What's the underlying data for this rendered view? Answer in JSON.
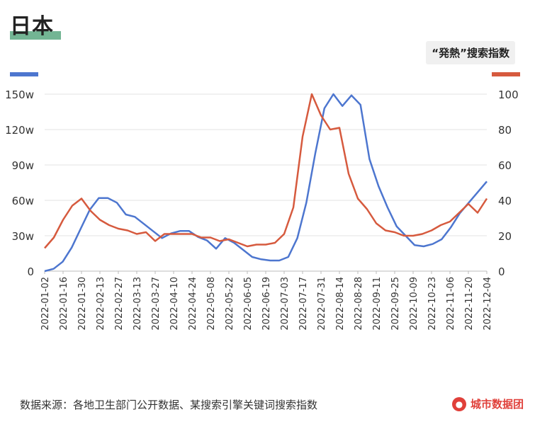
{
  "title": "日本",
  "badge": "“発熱”搜索指数",
  "source": "数据来源：各地卫生部门公开数据、某搜索引擎关键词搜索指数",
  "brand": "城市数据团",
  "colors": {
    "left_series": "#4d76cf",
    "right_series": "#d65a3e",
    "title_bar": "#5aa881",
    "brand": "#e0403a"
  },
  "chart_data": {
    "type": "line",
    "x_tick_labels": [
      "2022-01-02",
      "2022-01-16",
      "2022-01-30",
      "2022-02-13",
      "2022-02-27",
      "2022-03-13",
      "2022-03-27",
      "2022-04-10",
      "2022-04-24",
      "2022-05-08",
      "2022-05-22",
      "2022-06-05",
      "2022-06-19",
      "2022-07-03",
      "2022-07-17",
      "2022-07-31",
      "2022-08-14",
      "2022-08-28",
      "2022-09-11",
      "2022-09-25",
      "2022-10-09",
      "2022-10-23",
      "2022-11-06",
      "2022-11-20",
      "2022-12-04"
    ],
    "left_axis": {
      "ticks": [
        "0",
        "30w",
        "60w",
        "90w",
        "120w",
        "150w"
      ],
      "ylim": [
        0,
        150
      ],
      "unit": "w"
    },
    "right_axis": {
      "ticks": [
        "0",
        "20",
        "40",
        "60",
        "80",
        "100"
      ],
      "ylim": [
        0,
        100
      ]
    },
    "series": [
      {
        "axis": "left",
        "values": [
          0,
          2,
          8,
          20,
          36,
          52,
          62,
          62,
          58,
          48,
          46,
          40,
          34,
          28,
          32,
          34,
          34,
          29,
          26,
          19,
          28,
          24,
          18,
          12,
          10,
          9,
          9,
          12,
          28,
          58,
          100,
          138,
          150,
          140,
          149,
          141,
          95,
          72,
          54,
          38,
          30,
          22,
          21,
          23,
          27,
          37,
          49,
          58,
          67,
          76
        ]
      },
      {
        "axis": "right",
        "values": [
          13,
          19,
          29,
          37,
          41,
          34,
          29,
          26,
          24,
          23,
          21,
          22,
          17,
          21,
          21,
          21,
          21,
          19,
          19,
          17,
          18,
          16,
          14,
          15,
          15,
          16,
          21,
          36,
          76,
          100,
          88,
          80,
          81,
          55,
          41,
          35,
          27,
          23,
          22,
          20,
          20,
          21,
          23,
          26,
          28,
          33,
          38,
          33,
          41
        ]
      }
    ]
  }
}
